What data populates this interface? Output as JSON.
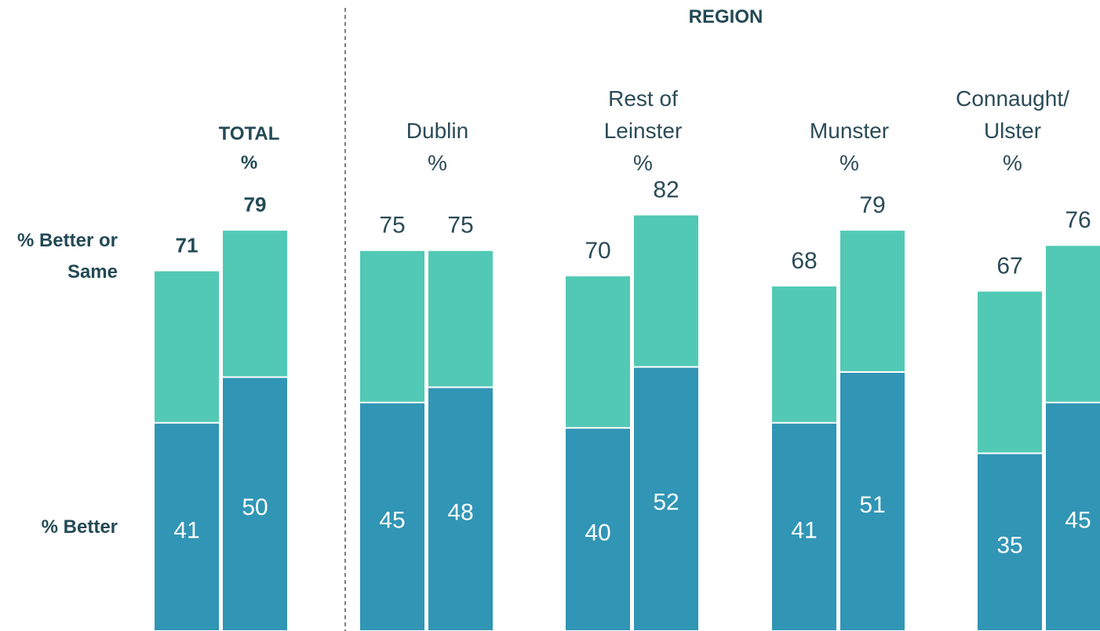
{
  "chart_data": {
    "type": "overlap_bar",
    "header": "REGION",
    "groups": [
      "TOTAL\n%",
      "Dublin\n%",
      "Rest of\nLeinster\n%",
      "Munster\n%",
      "Connaught/\nUlster\n%"
    ],
    "series": [
      {
        "name": "% Better or Same",
        "color": "#52c9b5",
        "values": [
          [
            71,
            79
          ],
          [
            75,
            75
          ],
          [
            70,
            82
          ],
          [
            68,
            79
          ],
          [
            67,
            76
          ]
        ]
      },
      {
        "name": "% Better",
        "color": "#3195b5",
        "values": [
          [
            41,
            50
          ],
          [
            45,
            48
          ],
          [
            40,
            52
          ],
          [
            41,
            51
          ],
          [
            35,
            45
          ]
        ]
      }
    ]
  }
}
